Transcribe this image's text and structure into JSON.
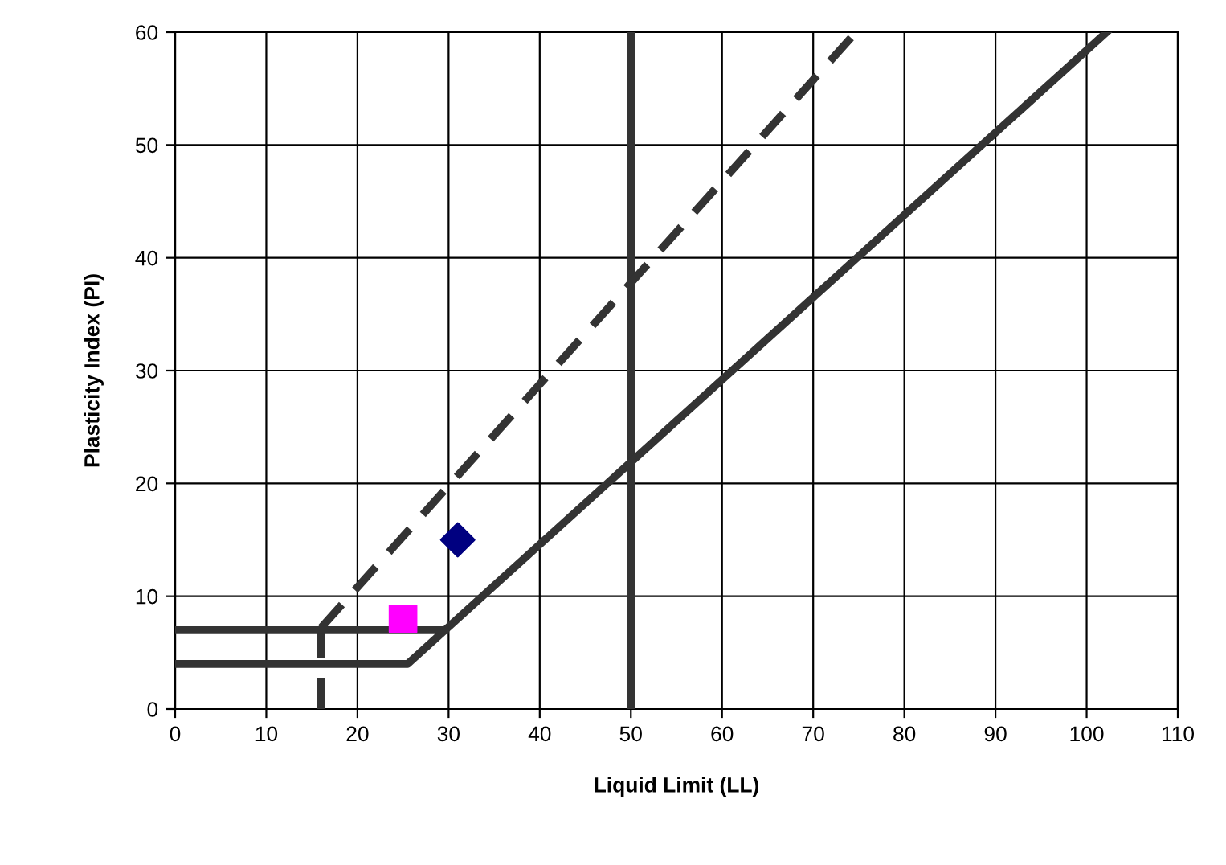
{
  "chart_data": {
    "type": "line",
    "xlabel": "Liquid Limit (LL)",
    "ylabel": "Plasticity Index (PI)",
    "xlim": [
      0,
      110
    ],
    "xticks": [
      0,
      10,
      20,
      30,
      40,
      50,
      60,
      70,
      80,
      90,
      100,
      110
    ],
    "ylim": [
      0,
      60
    ],
    "yticks": [
      0,
      10,
      20,
      30,
      40,
      50,
      60
    ],
    "grid": true,
    "ref_lines": [
      {
        "axis": "x",
        "value": 50,
        "color": "#333333",
        "line_style": "solid"
      }
    ],
    "series": [
      {
        "color": "#333333",
        "line_style": "dashed",
        "marker": "none",
        "x": [
          16,
          74.7
        ],
        "values": [
          7.2,
          60
        ]
      },
      {
        "color": "#333333",
        "line_style": "dashed",
        "marker": "none",
        "x": [
          16,
          16
        ],
        "values": [
          0,
          7.2
        ]
      },
      {
        "color": "#333333",
        "line_style": "solid",
        "marker": "none",
        "x": [
          0,
          25.5,
          102.2
        ],
        "values": [
          4,
          4,
          60
        ]
      },
      {
        "color": "#333333",
        "line_style": "solid",
        "marker": "none",
        "x": [
          0,
          29.6
        ],
        "values": [
          7,
          7
        ]
      },
      {
        "type": "scatter",
        "color": "#000080",
        "marker": "diamond",
        "x": [
          31
        ],
        "values": [
          15
        ]
      },
      {
        "type": "scatter",
        "color": "#ff00ff",
        "marker": "square",
        "x": [
          25
        ],
        "values": [
          8
        ]
      }
    ]
  }
}
